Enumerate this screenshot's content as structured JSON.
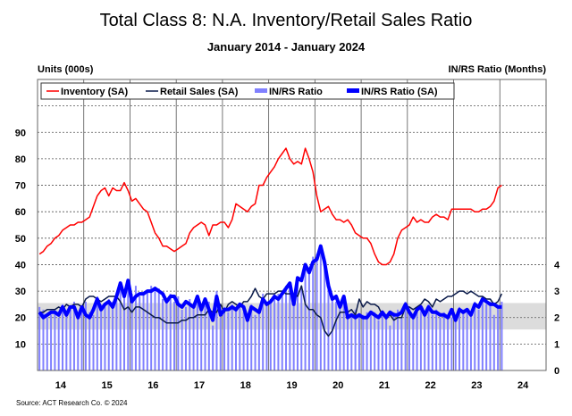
{
  "chart_data": {
    "type": "line",
    "title": "Total Class 8: N.A. Inventory/Retail Sales Ratio",
    "subtitle": "January 2014 - January 2024",
    "ylabel_left": "Units (000s)",
    "ylabel_right": "IN/RS Ratio (Months)",
    "source": "Source: ACT Research Co. © 2024",
    "x_start": "2014-01",
    "x_end": "2024-01",
    "x_frequency": "monthly",
    "x_tick_labels": [
      "14",
      "15",
      "16",
      "17",
      "18",
      "19",
      "20",
      "21",
      "22",
      "23",
      "24"
    ],
    "xlim": [
      "2014-01",
      "2025-01"
    ],
    "ylim_left": [
      0,
      110
    ],
    "ylim_right": [
      0,
      11
    ],
    "y_ticks_left": [
      10,
      20,
      30,
      40,
      50,
      60,
      70,
      80,
      90
    ],
    "y_ticks_right": [
      0,
      1,
      2,
      3,
      4
    ],
    "grid": true,
    "shaded_band_right_axis": [
      1.55,
      2.55
    ],
    "legend_placement": "top-left",
    "series": [
      {
        "name": "Inventory (SA)",
        "axis": "left",
        "kind": "line",
        "color": "#ff0000",
        "values": [
          44,
          45,
          47,
          48,
          50,
          51,
          53,
          54,
          55,
          55,
          56,
          56,
          57,
          58,
          62,
          66,
          68,
          69,
          66,
          69,
          68,
          68,
          71,
          68,
          64,
          65,
          63,
          61,
          60,
          56,
          52,
          50,
          47,
          47,
          46,
          45,
          46,
          47,
          48,
          52,
          54,
          55,
          56,
          55,
          51,
          55,
          55,
          56,
          56,
          54,
          57,
          63,
          62,
          61,
          60,
          62,
          63,
          70,
          70,
          73,
          75,
          77,
          80,
          82,
          84,
          80,
          78,
          79,
          78,
          84,
          80,
          75,
          66,
          60,
          61,
          62,
          59,
          57,
          57,
          56,
          57,
          55,
          52,
          51,
          50,
          50,
          48,
          44,
          41,
          40,
          40,
          41,
          44,
          50,
          53,
          54,
          55,
          58,
          56,
          57,
          56,
          56,
          58,
          59,
          58,
          58,
          57,
          61,
          61,
          61,
          61,
          61,
          61,
          60,
          60,
          61,
          61,
          62,
          64,
          69,
          70
        ]
      },
      {
        "name": "Retail Sales (SA)",
        "axis": "left",
        "kind": "line",
        "color": "#0a1a4a",
        "values": [
          22,
          22,
          23,
          23,
          23,
          24,
          23,
          25,
          24,
          25,
          25,
          24,
          27,
          28,
          28,
          27,
          26,
          27,
          28,
          28,
          28,
          26,
          23,
          24,
          22,
          24,
          24,
          23,
          22,
          21,
          20,
          20,
          19,
          18,
          18,
          18,
          18,
          19,
          19,
          20,
          20,
          21,
          21,
          21,
          23,
          22,
          22,
          25,
          22,
          25,
          26,
          25,
          24,
          26,
          26,
          28,
          31,
          28,
          27,
          29,
          29,
          29,
          30,
          30,
          29,
          29,
          29,
          28,
          32,
          25,
          23,
          23,
          21,
          20,
          15,
          13,
          15,
          19,
          22,
          22,
          22,
          23,
          21,
          27,
          24,
          26,
          25,
          25,
          24,
          21,
          20,
          21,
          19,
          20,
          20,
          24,
          24,
          23,
          24,
          25,
          27,
          26,
          24,
          27,
          26,
          27,
          28,
          28,
          29,
          30,
          30,
          29,
          30,
          29,
          28,
          28,
          27,
          27,
          25,
          26,
          29
        ]
      },
      {
        "name": "IN/RS Ratio",
        "axis": "right",
        "kind": "bar",
        "color": "#8080ff",
        "values": [
          2.4,
          2.3,
          2.0,
          2.1,
          2.3,
          2.0,
          2.5,
          2.2,
          2.3,
          2.6,
          2.1,
          2.2,
          2.6,
          2.2,
          2.1,
          2.8,
          2.5,
          2.4,
          2.7,
          2.6,
          2.7,
          3.1,
          3.0,
          3.3,
          2.9,
          3.2,
          2.8,
          2.9,
          3.0,
          3.2,
          3.0,
          3.1,
          2.7,
          2.7,
          2.9,
          2.6,
          2.8,
          2.3,
          2.4,
          2.7,
          2.5,
          2.6,
          2.5,
          2.6,
          2.6,
          1.7,
          3.0,
          2.0,
          2.4,
          2.2,
          2.5,
          2.4,
          2.4,
          2.2,
          2.0,
          2.5,
          2.1,
          2.3,
          2.9,
          2.6,
          2.7,
          2.7,
          2.9,
          2.8,
          3.2,
          3.1,
          2.6,
          3.5,
          3.2,
          3.8,
          3.9,
          4.3,
          4.4,
          4.5,
          4.0,
          3.1,
          2.8,
          2.6,
          2.5,
          2.6,
          2.1,
          2.0,
          2.3,
          2.0,
          2.1,
          2.2,
          2.1,
          2.2,
          1.9,
          2.1,
          2.1,
          1.7,
          2.2,
          2.3,
          2.0,
          2.6,
          2.3,
          2.1,
          2.4,
          2.3,
          2.2,
          2.5,
          2.1,
          2.3,
          2.0,
          2.2,
          2.1,
          2.0,
          2.0,
          2.4,
          2.3,
          2.2,
          2.1,
          2.6,
          2.3,
          2.8,
          2.5,
          2.6,
          2.1,
          2.4,
          2.6
        ]
      },
      {
        "name": "IN/RS Ratio (SA)",
        "axis": "right",
        "kind": "line",
        "color": "#0000ff",
        "values": [
          2.2,
          2.0,
          2.1,
          2.2,
          2.2,
          2.1,
          2.4,
          2.1,
          2.4,
          2.4,
          2.0,
          2.4,
          2.1,
          2.0,
          2.3,
          2.7,
          2.3,
          2.5,
          2.6,
          2.4,
          2.8,
          3.3,
          2.8,
          3.4,
          2.6,
          2.8,
          2.9,
          2.9,
          3.0,
          3.0,
          3.1,
          3.0,
          2.9,
          2.6,
          2.8,
          2.8,
          2.5,
          2.4,
          2.6,
          2.5,
          2.4,
          2.8,
          2.3,
          2.7,
          2.3,
          1.9,
          2.8,
          2.1,
          2.3,
          2.3,
          2.4,
          2.3,
          2.5,
          2.4,
          1.9,
          2.4,
          2.3,
          2.2,
          2.7,
          2.5,
          2.6,
          2.8,
          2.7,
          2.9,
          3.1,
          3.3,
          2.5,
          3.5,
          3.4,
          4.0,
          3.7,
          4.1,
          4.2,
          4.7,
          4.1,
          3.2,
          2.7,
          2.8,
          2.4,
          2.8,
          2.0,
          2.1,
          2.0,
          2.1,
          2.0,
          2.0,
          2.2,
          2.1,
          2.0,
          2.2,
          2.0,
          2.2,
          2.1,
          2.1,
          2.2,
          2.5,
          2.2,
          2.0,
          2.3,
          2.4,
          2.1,
          2.4,
          2.2,
          2.2,
          2.1,
          2.1,
          2.0,
          2.3,
          1.9,
          2.3,
          2.2,
          2.3,
          2.1,
          2.5,
          2.4,
          2.7,
          2.6,
          2.5,
          2.5,
          2.4,
          2.4
        ]
      }
    ]
  }
}
